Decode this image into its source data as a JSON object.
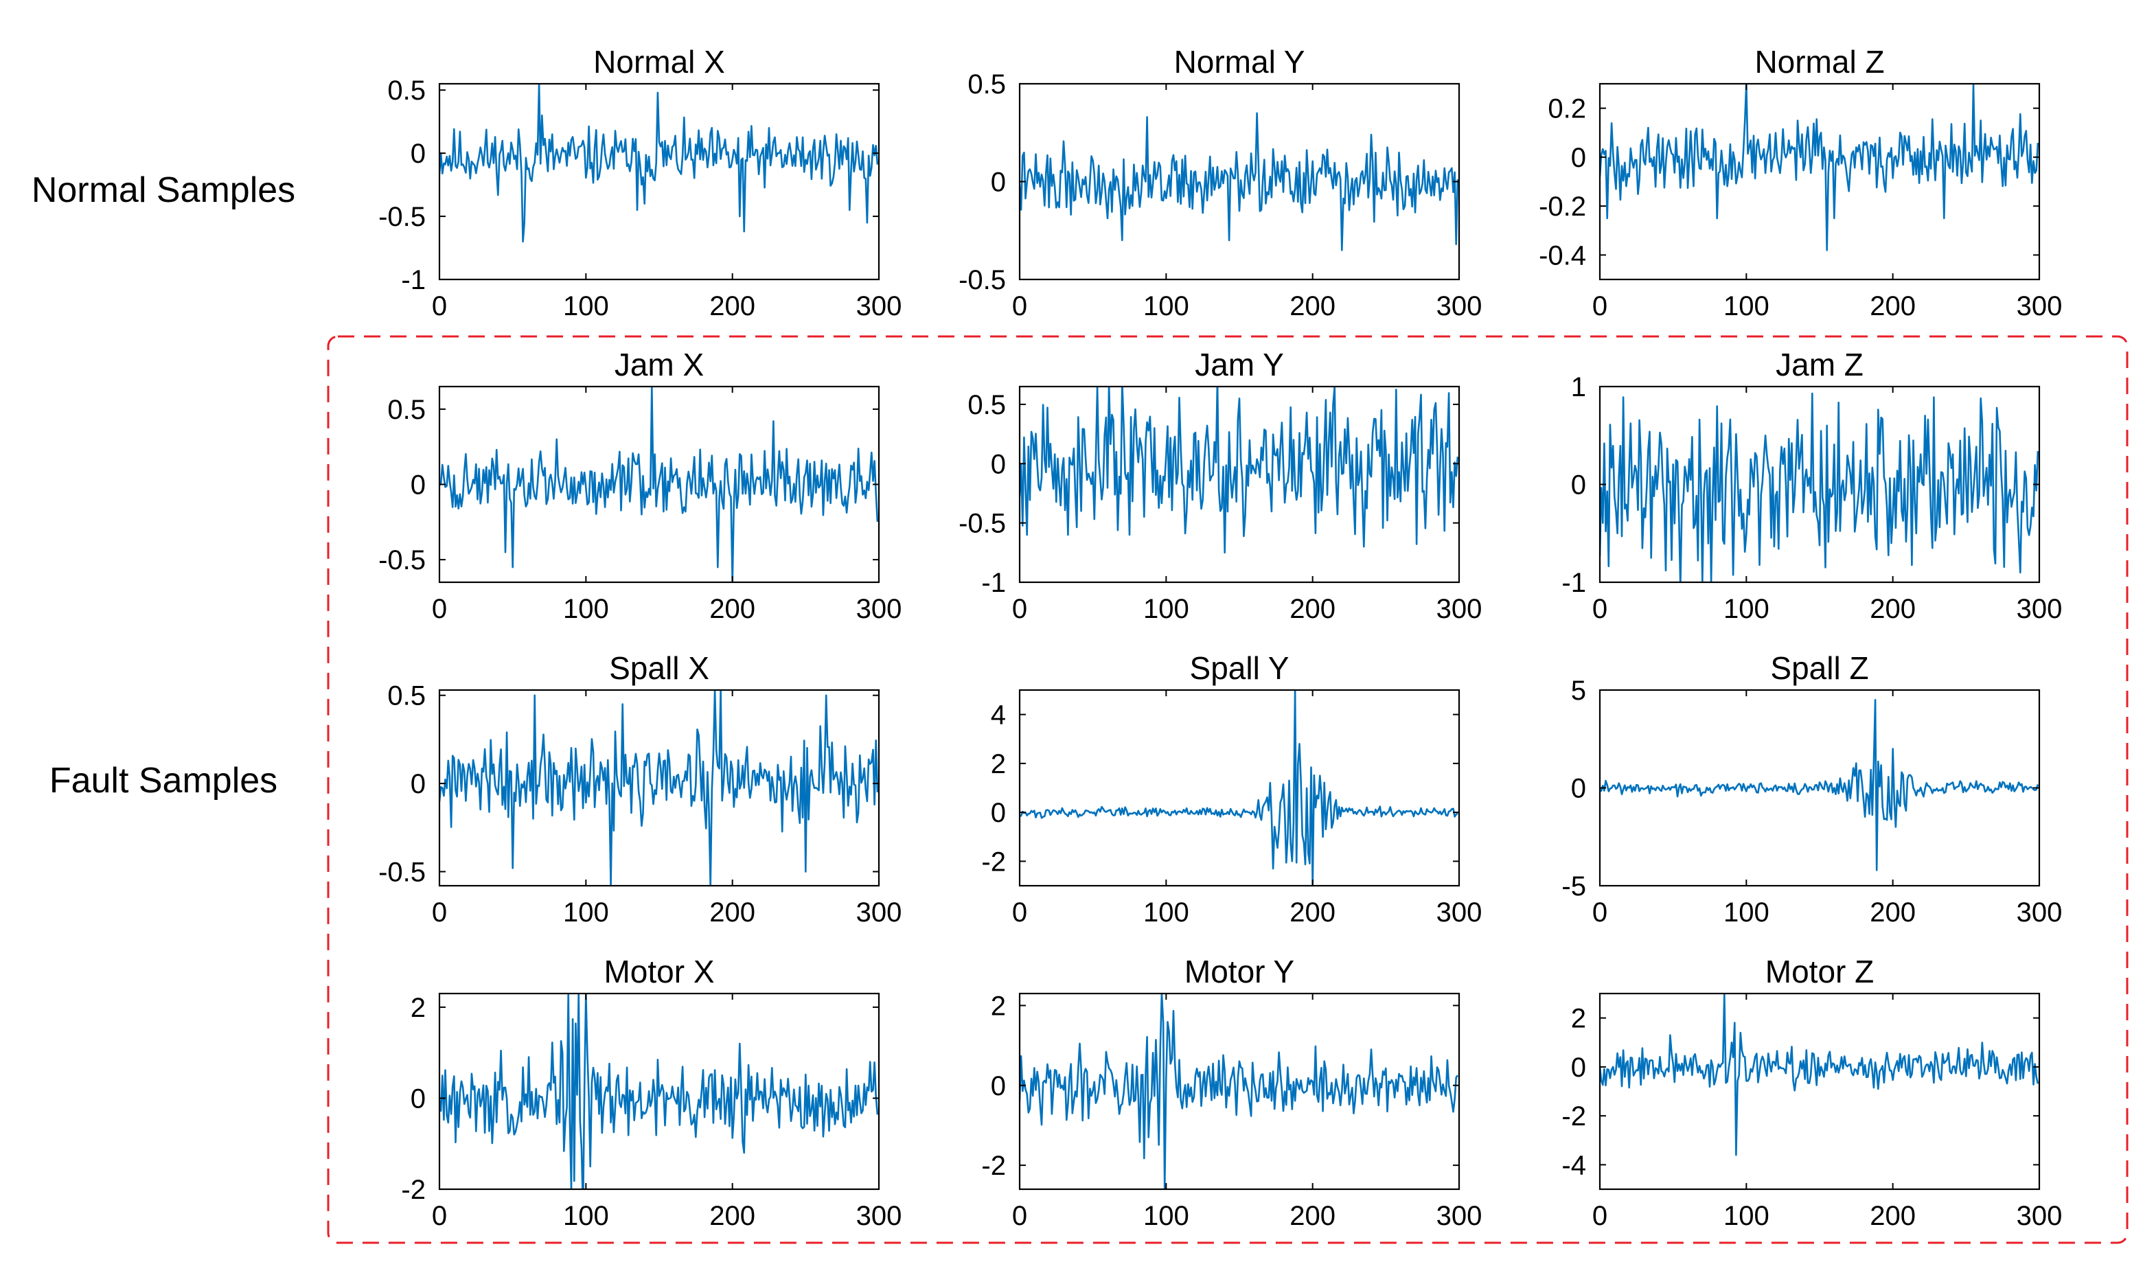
{
  "row_labels": {
    "normal": "Normal Samples",
    "fault": "Fault Samples"
  },
  "colors": {
    "series": "#0072bd",
    "fault_box": "#e8202a",
    "axis": "#000000"
  },
  "chart_data": [
    {
      "type": "line",
      "title": "Normal X",
      "xlim": [
        0,
        300
      ],
      "ylim": [
        -1,
        0.55
      ],
      "xticks": [
        0,
        100,
        200,
        300
      ],
      "yticks": [
        -1,
        -0.5,
        0,
        0.5
      ],
      "yticklabels": [
        "-1",
        "-0.5",
        "0",
        "0.5"
      ],
      "series": [
        {
          "name": "Normal X",
          "n_points": 300,
          "noise_amp": 0.11,
          "baseline": -0.03,
          "seed": 11,
          "spikes": [
            [
              57,
              -0.7
            ],
            [
              58,
              -0.55
            ],
            [
              68,
              0.55
            ],
            [
              70,
              0.3
            ],
            [
              135,
              -0.45
            ],
            [
              140,
              -0.4
            ],
            [
              149,
              0.48
            ],
            [
              205,
              -0.5
            ],
            [
              208,
              -0.62
            ],
            [
              280,
              -0.45
            ],
            [
              292,
              -0.55
            ]
          ]
        }
      ]
    },
    {
      "type": "line",
      "title": "Normal Y",
      "xlim": [
        0,
        300
      ],
      "ylim": [
        -0.5,
        0.5
      ],
      "xticks": [
        0,
        100,
        200,
        300
      ],
      "yticks": [
        -0.5,
        0,
        0.5
      ],
      "yticklabels": [
        "-0.5",
        "0",
        "0.5"
      ],
      "series": [
        {
          "name": "Normal Y",
          "n_points": 300,
          "noise_amp": 0.08,
          "baseline": 0,
          "seed": 22,
          "spikes": [
            [
              70,
              -0.3
            ],
            [
              87,
              0.33
            ],
            [
              143,
              -0.3
            ],
            [
              162,
              0.35
            ],
            [
              220,
              -0.35
            ],
            [
              240,
              0.24
            ],
            [
              298,
              -0.32
            ]
          ]
        }
      ]
    },
    {
      "type": "line",
      "title": "Normal Z",
      "xlim": [
        0,
        300
      ],
      "ylim": [
        -0.5,
        0.3
      ],
      "xticks": [
        0,
        100,
        200,
        300
      ],
      "yticks": [
        -0.4,
        -0.2,
        0,
        0.2
      ],
      "yticklabels": [
        "-0.4",
        "-0.2",
        "0",
        "0.2"
      ],
      "series": [
        {
          "name": "Normal Z",
          "n_points": 300,
          "noise_amp": 0.07,
          "baseline": 0,
          "seed": 33,
          "spikes": [
            [
              5,
              -0.25
            ],
            [
              80,
              -0.25
            ],
            [
              100,
              0.3
            ],
            [
              155,
              -0.38
            ],
            [
              160,
              -0.25
            ],
            [
              235,
              -0.25
            ],
            [
              255,
              0.3
            ],
            [
              260,
              0.15
            ]
          ]
        }
      ]
    },
    {
      "type": "line",
      "title": "Jam X",
      "xlim": [
        0,
        300
      ],
      "ylim": [
        -0.65,
        0.65
      ],
      "xticks": [
        0,
        100,
        200,
        300
      ],
      "yticks": [
        -0.5,
        0,
        0.5
      ],
      "yticklabels": [
        "-0.5",
        "0",
        "0.5"
      ],
      "series": [
        {
          "name": "Jam X",
          "n_points": 300,
          "noise_amp": 0.1,
          "baseline": 0,
          "seed": 44,
          "spikes": [
            [
              45,
              -0.45
            ],
            [
              50,
              -0.55
            ],
            [
              80,
              0.3
            ],
            [
              145,
              0.65
            ],
            [
              190,
              -0.55
            ],
            [
              200,
              -0.65
            ],
            [
              228,
              0.42
            ]
          ]
        }
      ]
    },
    {
      "type": "line",
      "title": "Jam Y",
      "xlim": [
        0,
        300
      ],
      "ylim": [
        -1,
        0.65
      ],
      "xticks": [
        0,
        100,
        200,
        300
      ],
      "yticks": [
        -1,
        -0.5,
        0,
        0.5
      ],
      "yticklabels": [
        "-1",
        "-0.5",
        "0",
        "0.5"
      ],
      "series": [
        {
          "name": "Jam Y",
          "n_points": 300,
          "noise_amp": 0.28,
          "baseline": 0,
          "seed": 55,
          "spikes": [
            [
              215,
              0.65
            ],
            [
              235,
              -0.7
            ],
            [
              150,
              0.55
            ],
            [
              75,
              -0.6
            ]
          ]
        }
      ]
    },
    {
      "type": "line",
      "title": "Jam Z",
      "xlim": [
        0,
        300
      ],
      "ylim": [
        -1,
        1
      ],
      "xticks": [
        0,
        100,
        200,
        300
      ],
      "yticks": [
        -1,
        0,
        1
      ],
      "yticklabels": [
        "-1",
        "0",
        "1"
      ],
      "series": [
        {
          "name": "Jam Z",
          "n_points": 300,
          "noise_amp": 0.38,
          "baseline": 0,
          "seed": 66,
          "spikes": [
            [
              45,
              -0.88
            ],
            [
              70,
              -1
            ],
            [
              76,
              -1
            ],
            [
              80,
              0.8
            ],
            [
              260,
              0.88
            ]
          ]
        }
      ]
    },
    {
      "type": "line",
      "title": "Spall X",
      "xlim": [
        0,
        300
      ],
      "ylim": [
        -0.58,
        0.53
      ],
      "xticks": [
        0,
        100,
        200,
        300
      ],
      "yticks": [
        -0.5,
        0,
        0.5
      ],
      "yticklabels": [
        "-0.5",
        "0",
        "0.5"
      ],
      "series": [
        {
          "name": "Spall X",
          "n_points": 300,
          "noise_amp": 0.12,
          "baseline": 0,
          "seed": 77,
          "spikes": [
            [
              50,
              -0.48
            ],
            [
              65,
              0.5
            ],
            [
              117,
              -0.58
            ],
            [
              125,
              0.45
            ],
            [
              185,
              -0.58
            ],
            [
              188,
              0.53
            ],
            [
              192,
              0.53
            ],
            [
              250,
              -0.5
            ],
            [
              264,
              0.5
            ]
          ]
        }
      ]
    },
    {
      "type": "line",
      "title": "Spall Y",
      "xlim": [
        0,
        300
      ],
      "ylim": [
        -3,
        5
      ],
      "xticks": [
        0,
        100,
        200,
        300
      ],
      "yticks": [
        -2,
        0,
        2,
        4
      ],
      "yticklabels": [
        "-2",
        "0",
        "2",
        "4"
      ],
      "series": [
        {
          "name": "Spall Y",
          "n_points": 300,
          "noise_amp": 0.09,
          "baseline": 0,
          "seed": 88,
          "burst": {
            "center": 190,
            "width": 22,
            "amp": 1.2
          },
          "spikes": [
            [
              173,
              -2.3
            ],
            [
              188,
              5
            ],
            [
              191,
              2.8
            ],
            [
              200,
              -3
            ],
            [
              205,
              1.5
            ]
          ]
        }
      ]
    },
    {
      "type": "line",
      "title": "Spall Z",
      "xlim": [
        0,
        300
      ],
      "ylim": [
        -5,
        5
      ],
      "xticks": [
        0,
        100,
        200,
        300
      ],
      "yticks": [
        -5,
        0,
        5
      ],
      "yticklabels": [
        "-5",
        "0",
        "5"
      ],
      "series": [
        {
          "name": "Spall Z",
          "n_points": 300,
          "noise_amp": 0.16,
          "baseline": 0,
          "seed": 99,
          "burst": {
            "center": 192,
            "width": 20,
            "amp": 1.2
          },
          "spikes": [
            [
              178,
              0.9
            ],
            [
              188,
              4.5
            ],
            [
              189,
              -4.2
            ],
            [
              200,
              2
            ],
            [
              202,
              -2
            ]
          ]
        }
      ]
    },
    {
      "type": "line",
      "title": "Motor X",
      "xlim": [
        0,
        300
      ],
      "ylim": [
        -2,
        2.3
      ],
      "xticks": [
        0,
        100,
        200,
        300
      ],
      "yticks": [
        -2,
        0,
        2
      ],
      "yticklabels": [
        "-2",
        "0",
        "2"
      ],
      "series": [
        {
          "name": "Motor X",
          "n_points": 300,
          "noise_amp": 0.42,
          "baseline": 0,
          "seed": 111,
          "burst": {
            "center": 95,
            "width": 15,
            "amp": 1
          },
          "spikes": [
            [
              88,
              2.3
            ],
            [
              90,
              -2
            ],
            [
              100,
              2.3
            ],
            [
              103,
              -1.5
            ],
            [
              205,
              1.2
            ],
            [
              208,
              -1.2
            ]
          ]
        }
      ]
    },
    {
      "type": "line",
      "title": "Motor Y",
      "xlim": [
        0,
        300
      ],
      "ylim": [
        -2.6,
        2.3
      ],
      "xticks": [
        0,
        100,
        200,
        300
      ],
      "yticks": [
        -2,
        0,
        2
      ],
      "yticklabels": [
        "-2",
        "0",
        "2"
      ],
      "series": [
        {
          "name": "Motor Y",
          "n_points": 300,
          "noise_amp": 0.38,
          "baseline": 0,
          "seed": 122,
          "burst": {
            "center": 95,
            "width": 14,
            "amp": 1.2
          },
          "spikes": [
            [
              97,
              2.3
            ],
            [
              99,
              -2.6
            ],
            [
              88,
              -1.3
            ],
            [
              240,
              0.9
            ]
          ]
        }
      ]
    },
    {
      "type": "line",
      "title": "Motor Z",
      "xlim": [
        0,
        300
      ],
      "ylim": [
        -5,
        3
      ],
      "xticks": [
        0,
        100,
        200,
        300
      ],
      "yticks": [
        -4,
        -2,
        0,
        2
      ],
      "yticklabels": [
        "-4",
        "-2",
        "0",
        "2"
      ],
      "series": [
        {
          "name": "Motor Z",
          "n_points": 300,
          "noise_amp": 0.38,
          "baseline": 0,
          "seed": 133,
          "burst": {
            "center": 92,
            "width": 8,
            "amp": 0.8
          },
          "spikes": [
            [
              85,
              3
            ],
            [
              93,
              -3.6
            ],
            [
              48,
              1.3
            ],
            [
              190,
              -0.9
            ]
          ]
        }
      ]
    }
  ]
}
